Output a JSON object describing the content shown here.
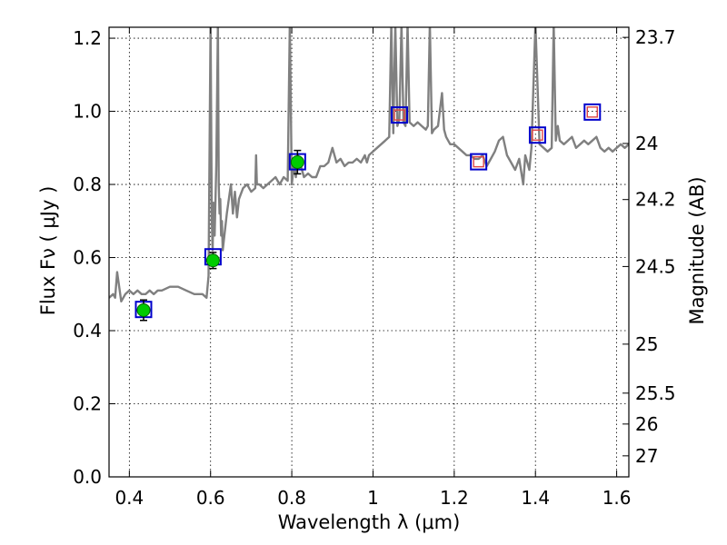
{
  "chart_data": {
    "type": "line",
    "title": "",
    "xlabel": "Wavelength  λ (μm)",
    "ylabel": "Flux  Fν  ( μJy )",
    "ylabel_right": "Magnitude (AB)",
    "xlim": [
      0.35,
      1.63
    ],
    "ylim": [
      0.0,
      1.23
    ],
    "grid": true,
    "x_ticks": [
      0.4,
      0.6,
      0.8,
      1.0,
      1.2,
      1.4,
      1.6
    ],
    "x_tick_labels": [
      "0.4",
      "0.6",
      "0.8",
      "1",
      "1.2",
      "1.4",
      "1.6"
    ],
    "y_ticks": [
      0.0,
      0.2,
      0.4,
      0.6,
      0.8,
      1.0,
      1.2
    ],
    "y_tick_labels": [
      "0.0",
      "0.2",
      "0.4",
      "0.6",
      "0.8",
      "1.0",
      "1.2"
    ],
    "right_axis_ticks": [
      {
        "label": "23.7",
        "mag": 23.7
      },
      {
        "label": "24",
        "mag": 24.0
      },
      {
        "label": "24.2",
        "mag": 24.2
      },
      {
        "label": "24.5",
        "mag": 24.5
      },
      {
        "label": "25",
        "mag": 25.0
      },
      {
        "label": "25.5",
        "mag": 25.5
      },
      {
        "label": "26",
        "mag": 26.0
      },
      {
        "label": "27",
        "mag": 27.0
      }
    ],
    "series": [
      {
        "name": "model SED",
        "style": "line",
        "color": "#808080",
        "x": [
          0.35,
          0.36,
          0.365,
          0.37,
          0.38,
          0.39,
          0.4,
          0.41,
          0.42,
          0.43,
          0.44,
          0.45,
          0.46,
          0.47,
          0.48,
          0.5,
          0.52,
          0.54,
          0.56,
          0.58,
          0.59,
          0.595,
          0.6,
          0.603,
          0.605,
          0.607,
          0.61,
          0.614,
          0.618,
          0.62,
          0.622,
          0.624,
          0.626,
          0.628,
          0.63,
          0.64,
          0.65,
          0.655,
          0.66,
          0.665,
          0.67,
          0.68,
          0.69,
          0.7,
          0.71,
          0.712,
          0.714,
          0.72,
          0.73,
          0.74,
          0.75,
          0.76,
          0.77,
          0.78,
          0.79,
          0.795,
          0.8,
          0.805,
          0.81,
          0.815,
          0.82,
          0.83,
          0.84,
          0.85,
          0.86,
          0.87,
          0.88,
          0.89,
          0.9,
          0.91,
          0.92,
          0.93,
          0.94,
          0.95,
          0.96,
          0.97,
          0.98,
          0.985,
          0.99,
          1.0,
          1.01,
          1.02,
          1.03,
          1.04,
          1.045,
          1.05,
          1.055,
          1.06,
          1.065,
          1.07,
          1.075,
          1.08,
          1.085,
          1.09,
          1.1,
          1.11,
          1.12,
          1.13,
          1.135,
          1.14,
          1.145,
          1.15,
          1.16,
          1.17,
          1.175,
          1.18,
          1.19,
          1.2,
          1.21,
          1.22,
          1.23,
          1.24,
          1.25,
          1.26,
          1.27,
          1.28,
          1.29,
          1.3,
          1.31,
          1.32,
          1.33,
          1.34,
          1.35,
          1.36,
          1.37,
          1.375,
          1.38,
          1.385,
          1.39,
          1.4,
          1.41,
          1.42,
          1.43,
          1.44,
          1.445,
          1.45,
          1.455,
          1.46,
          1.47,
          1.48,
          1.49,
          1.5,
          1.51,
          1.52,
          1.53,
          1.54,
          1.55,
          1.56,
          1.57,
          1.58,
          1.59,
          1.6,
          1.61,
          1.62,
          1.63
        ],
        "y": [
          0.49,
          0.5,
          0.49,
          0.56,
          0.48,
          0.5,
          0.51,
          0.5,
          0.51,
          0.5,
          0.5,
          0.51,
          0.5,
          0.51,
          0.51,
          0.52,
          0.52,
          0.51,
          0.5,
          0.5,
          0.49,
          0.55,
          1.24,
          0.7,
          0.62,
          0.75,
          0.66,
          0.85,
          1.24,
          0.8,
          0.72,
          0.76,
          0.66,
          0.7,
          0.62,
          0.72,
          0.8,
          0.72,
          0.78,
          0.71,
          0.76,
          0.79,
          0.8,
          0.78,
          0.79,
          0.88,
          0.8,
          0.8,
          0.79,
          0.8,
          0.81,
          0.82,
          0.8,
          0.82,
          0.81,
          1.24,
          0.8,
          0.85,
          0.82,
          0.88,
          0.86,
          0.82,
          0.83,
          0.82,
          0.82,
          0.85,
          0.85,
          0.86,
          0.9,
          0.86,
          0.87,
          0.85,
          0.86,
          0.86,
          0.87,
          0.86,
          0.88,
          0.86,
          0.88,
          0.89,
          0.9,
          0.91,
          0.92,
          0.93,
          1.24,
          0.94,
          1.24,
          0.96,
          0.98,
          1.24,
          0.97,
          0.96,
          1.24,
          0.97,
          0.96,
          0.97,
          0.96,
          0.95,
          0.96,
          1.24,
          0.94,
          0.95,
          0.96,
          1.05,
          0.95,
          0.93,
          0.91,
          0.91,
          0.9,
          0.89,
          0.88,
          0.88,
          0.87,
          0.87,
          0.88,
          0.85,
          0.87,
          0.89,
          0.92,
          0.93,
          0.88,
          0.86,
          0.84,
          0.87,
          0.8,
          0.88,
          0.86,
          0.84,
          0.9,
          1.24,
          0.91,
          0.9,
          0.89,
          0.9,
          1.24,
          0.92,
          0.96,
          0.92,
          0.91,
          0.92,
          0.93,
          0.9,
          0.91,
          0.92,
          0.91,
          0.92,
          0.93,
          0.9,
          0.89,
          0.9,
          0.89,
          0.9,
          0.91,
          0.9,
          0.91
        ]
      },
      {
        "name": "observed photometry",
        "style": "marker-circle-errorbar",
        "color": "#00cc00",
        "x": [
          0.435,
          0.606,
          0.814
        ],
        "y": [
          0.456,
          0.592,
          0.861
        ],
        "yerr": [
          0.028,
          0.022,
          0.032
        ]
      },
      {
        "name": "model photometry",
        "style": "marker-square",
        "color": "#0000cc",
        "x": [
          0.435,
          0.606,
          0.814,
          1.065,
          1.26,
          1.405,
          1.54
        ],
        "y": [
          0.458,
          0.602,
          0.862,
          0.99,
          0.862,
          0.935,
          0.998
        ]
      },
      {
        "name": "photometry upper points",
        "style": "marker-square",
        "color": "#dd4444",
        "x": [
          1.065,
          1.26,
          1.405,
          1.54
        ],
        "y": [
          0.99,
          0.862,
          0.935,
          0.998
        ]
      }
    ]
  }
}
